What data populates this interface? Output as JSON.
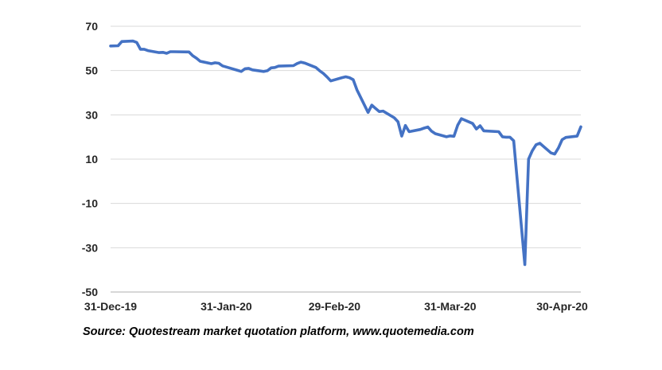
{
  "chart_data": {
    "type": "line",
    "title": "",
    "xlabel": "",
    "ylabel": "",
    "ylim": [
      -50,
      70
    ],
    "xlim": [
      "2019-12-31",
      "2020-05-05"
    ],
    "grid": true,
    "legend": "none",
    "y_ticks": [
      "70",
      "50",
      "30",
      "10",
      "-10",
      "-30",
      "-50"
    ],
    "y_tick_values": [
      70,
      50,
      30,
      10,
      -10,
      -30,
      -50
    ],
    "x_ticks": [
      "31-Dec-19",
      "31-Jan-20",
      "29-Feb-20",
      "31-Mar-20",
      "30-Apr-20"
    ],
    "x_tick_dates": [
      "2019-12-31",
      "2020-01-31",
      "2020-02-29",
      "2020-03-31",
      "2020-04-30"
    ],
    "series": [
      {
        "color": "#4472C4",
        "x": [
          "2019-12-31",
          "2020-01-02",
          "2020-01-03",
          "2020-01-06",
          "2020-01-07",
          "2020-01-08",
          "2020-01-09",
          "2020-01-10",
          "2020-01-13",
          "2020-01-14",
          "2020-01-15",
          "2020-01-16",
          "2020-01-17",
          "2020-01-21",
          "2020-01-22",
          "2020-01-23",
          "2020-01-24",
          "2020-01-27",
          "2020-01-28",
          "2020-01-29",
          "2020-01-30",
          "2020-01-31",
          "2020-02-03",
          "2020-02-04",
          "2020-02-05",
          "2020-02-06",
          "2020-02-07",
          "2020-02-10",
          "2020-02-11",
          "2020-02-12",
          "2020-02-13",
          "2020-02-14",
          "2020-02-18",
          "2020-02-19",
          "2020-02-20",
          "2020-02-21",
          "2020-02-24",
          "2020-02-25",
          "2020-02-26",
          "2020-02-27",
          "2020-02-28",
          "2020-03-02",
          "2020-03-03",
          "2020-03-04",
          "2020-03-05",
          "2020-03-06",
          "2020-03-09",
          "2020-03-10",
          "2020-03-11",
          "2020-03-12",
          "2020-03-13",
          "2020-03-16",
          "2020-03-17",
          "2020-03-18",
          "2020-03-19",
          "2020-03-20",
          "2020-03-23",
          "2020-03-24",
          "2020-03-25",
          "2020-03-26",
          "2020-03-27",
          "2020-03-30",
          "2020-03-31",
          "2020-04-01",
          "2020-04-02",
          "2020-04-03",
          "2020-04-06",
          "2020-04-07",
          "2020-04-08",
          "2020-04-09",
          "2020-04-13",
          "2020-04-14",
          "2020-04-15",
          "2020-04-16",
          "2020-04-17",
          "2020-04-20",
          "2020-04-21",
          "2020-04-22",
          "2020-04-23",
          "2020-04-24",
          "2020-04-27",
          "2020-04-28",
          "2020-04-29",
          "2020-04-30",
          "2020-05-01",
          "2020-05-04",
          "2020-05-05"
        ],
        "values": [
          61.1,
          61.2,
          63.1,
          63.3,
          62.7,
          59.6,
          59.6,
          59.0,
          58.1,
          58.2,
          57.8,
          58.5,
          58.5,
          58.4,
          56.7,
          55.6,
          54.2,
          53.1,
          53.5,
          53.3,
          52.1,
          51.6,
          50.1,
          49.6,
          50.8,
          51.0,
          50.3,
          49.6,
          49.9,
          51.2,
          51.4,
          52.0,
          52.2,
          53.2,
          53.8,
          53.4,
          51.4,
          49.9,
          48.7,
          47.1,
          45.3,
          46.8,
          47.2,
          46.8,
          45.9,
          41.3,
          31.1,
          34.4,
          32.9,
          31.5,
          31.7,
          28.7,
          26.9,
          20.4,
          25.2,
          22.4,
          23.4,
          24.0,
          24.5,
          22.6,
          21.5,
          20.1,
          20.5,
          20.3,
          25.3,
          28.3,
          26.1,
          23.6,
          25.1,
          22.8,
          22.4,
          20.1,
          19.9,
          19.9,
          18.3,
          -37.6,
          10.0,
          13.8,
          16.5,
          17.2,
          12.8,
          12.3,
          15.1,
          18.8,
          19.8,
          20.4,
          24.6
        ]
      }
    ]
  },
  "footer": {
    "source": "Source:  Quotestream market quotation platform, www.quotemedia.com"
  }
}
